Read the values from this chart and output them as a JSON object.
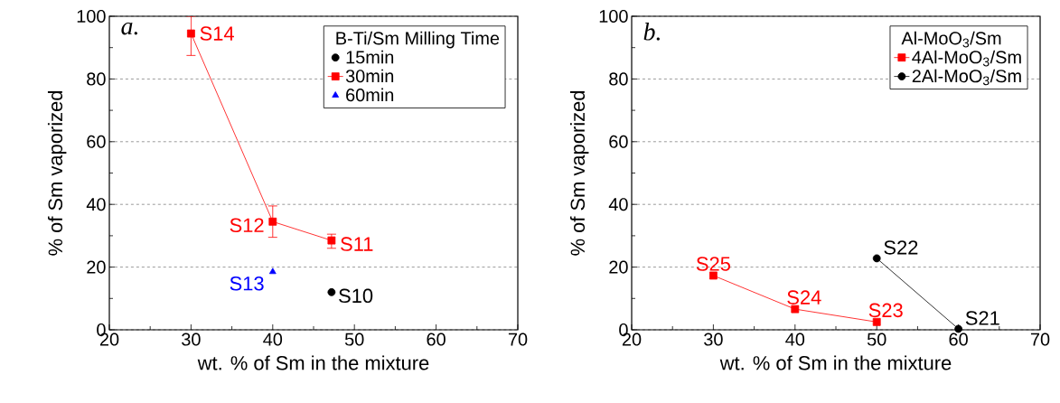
{
  "chart_data": [
    {
      "type": "line",
      "xlabel": "wt. % of Sm in the mixture",
      "ylabel": "% of Sm vaporized",
      "legend_title": "B-Ti/Sm Milling Time",
      "legend": "top right",
      "grid": "y",
      "xlim": [
        20,
        70
      ],
      "xticks": [
        20,
        30,
        40,
        50,
        60,
        70
      ],
      "ylim": [
        0,
        100
      ],
      "yticks": [
        0,
        20,
        40,
        60,
        80,
        100
      ],
      "series": [
        {
          "name": "15min",
          "color": "#000000",
          "marker": "circle",
          "line_style": "none",
          "x": [
            47.2
          ],
          "values": [
            12
          ]
        },
        {
          "name": "30min",
          "color": "#ff0000",
          "marker": "square",
          "line_style": "solid",
          "x": [
            30,
            40,
            47.2
          ],
          "values": [
            94.5,
            34.5,
            28.5
          ],
          "errors": [
            [
              87.5,
              100
            ],
            [
              29.5,
              39.5
            ],
            [
              26,
              30.5
            ]
          ]
        },
        {
          "name": "60min",
          "color": "#0000ff",
          "marker": "triangle",
          "line_style": "none",
          "x": [
            40
          ],
          "values": [
            18.5
          ]
        }
      ],
      "annotations": [
        "a.",
        {
          "text": "S14",
          "x": 30,
          "y": 94.5
        },
        {
          "text": "S12",
          "x": 40,
          "y": 34.5
        },
        {
          "text": "S11",
          "x": 47.2,
          "y": 28.5
        },
        {
          "text": "S13",
          "x": 40,
          "y": 18.5
        },
        {
          "text": "S10",
          "x": 47.2,
          "y": 12
        }
      ]
    },
    {
      "type": "line",
      "xlabel": "wt. % of Sm in the mixture",
      "ylabel": "% of Sm vaporized",
      "legend_title": "Al-MoO$_{3}$/Sm",
      "legend": "top right",
      "grid": "y",
      "xlim": [
        20,
        70
      ],
      "xticks": [
        20,
        30,
        40,
        50,
        60,
        70
      ],
      "ylim": [
        0,
        100
      ],
      "yticks": [
        0,
        20,
        40,
        60,
        80,
        100
      ],
      "series": [
        {
          "name": "4Al-MoO$_{3}$/Sm",
          "color": "#ff0000",
          "marker": "square",
          "line_style": "solid",
          "x": [
            30,
            40,
            50
          ],
          "values": [
            17.3,
            6.6,
            2.5
          ]
        },
        {
          "name": "2Al-MoO$_{3}$/Sm",
          "color": "#000000",
          "marker": "circle",
          "line_style": "solid",
          "x": [
            50,
            60
          ],
          "values": [
            22.8,
            0.3
          ]
        }
      ],
      "annotations": [
        "b.",
        {
          "text": "S25",
          "x": 30,
          "y": 17.3
        },
        {
          "text": "S24",
          "x": 40,
          "y": 6.6
        },
        {
          "text": "S23",
          "x": 50,
          "y": 2.5
        },
        {
          "text": "S22",
          "x": 50,
          "y": 22.8
        },
        {
          "text": "S21",
          "x": 60,
          "y": 0.3
        }
      ]
    }
  ]
}
